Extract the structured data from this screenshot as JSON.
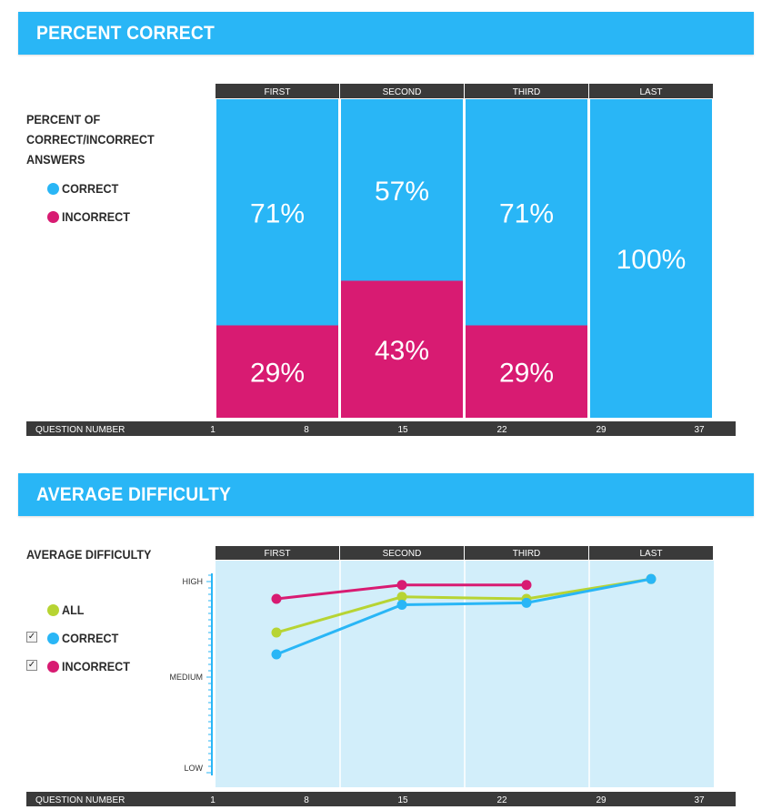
{
  "sections": {
    "percent_correct": {
      "title": "PERCENT CORRECT",
      "side_title_lines": [
        "PERCENT OF",
        "CORRECT/INCORRECT",
        "ANSWERS"
      ],
      "legend": [
        "CORRECT",
        "INCORRECT"
      ]
    },
    "average_difficulty": {
      "title": "AVERAGE DIFFICULTY",
      "side_title": "AVERAGE DIFFICULTY",
      "legend": [
        "ALL",
        "CORRECT",
        "INCORRECT"
      ],
      "checkbox_mark": "✓"
    }
  },
  "colors": {
    "banner": "#29b6f6",
    "correct": "#29b6f6",
    "incorrect": "#d81b72",
    "all": "#b7d433",
    "header_bar": "#3a3a3a",
    "plot_bg": "#d2eefa"
  },
  "chart_data": [
    {
      "type": "bar",
      "stacked": true,
      "title": "PERCENT OF CORRECT/INCORRECT ANSWERS",
      "categories": [
        "FIRST",
        "SECOND",
        "THIRD",
        "LAST"
      ],
      "series": [
        {
          "name": "CORRECT",
          "values": [
            71,
            57,
            71,
            100
          ],
          "labels": [
            "71%",
            "57%",
            "71%",
            "100%"
          ]
        },
        {
          "name": "INCORRECT",
          "values": [
            29,
            43,
            29,
            0
          ],
          "labels": [
            "29%",
            "43%",
            "29%",
            ""
          ]
        }
      ],
      "xlabel": "QUESTION NUMBER",
      "x_ticks": [
        "1",
        "8",
        "15",
        "22",
        "29",
        "37"
      ],
      "ylim": [
        0,
        100
      ]
    },
    {
      "type": "line",
      "title": "AVERAGE DIFFICULTY",
      "categories": [
        "FIRST",
        "SECOND",
        "THIRD",
        "LAST"
      ],
      "y_tick_labels": [
        "HIGH",
        "MEDIUM",
        "LOW"
      ],
      "ylim": [
        0,
        100
      ],
      "series": [
        {
          "name": "INCORRECT",
          "values": [
            89,
            96,
            96,
            null
          ]
        },
        {
          "name": "ALL",
          "values": [
            72,
            90,
            89,
            99
          ]
        },
        {
          "name": "CORRECT",
          "values": [
            61,
            86,
            87,
            99
          ]
        }
      ],
      "xlabel": "QUESTION NUMBER",
      "x_ticks": [
        "1",
        "8",
        "15",
        "22",
        "29",
        "37"
      ]
    }
  ]
}
